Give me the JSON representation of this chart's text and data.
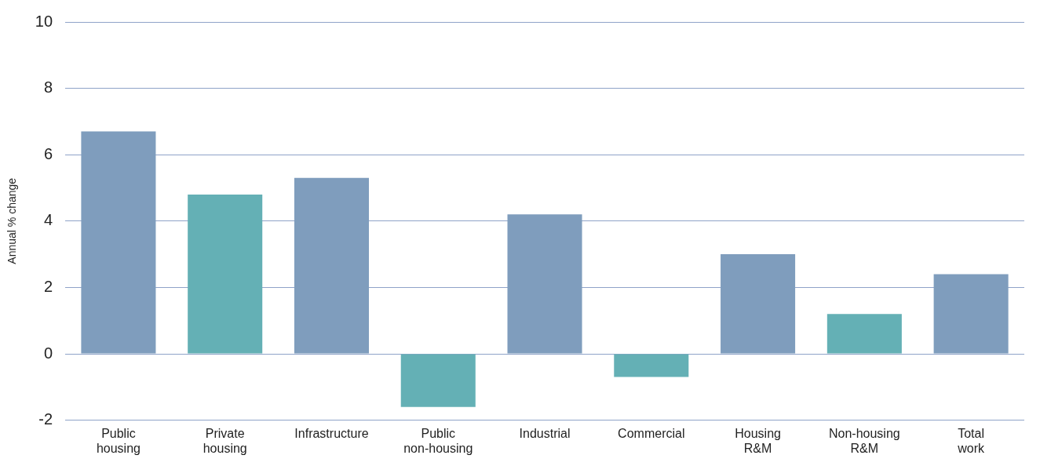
{
  "chart_data": {
    "type": "bar",
    "ylabel": "Annual % change",
    "categories": [
      "Public housing",
      "Private housing",
      "Infrastructure",
      "Public non-housing",
      "Industrial",
      "Commercial",
      "Housing R&M",
      "Non-housing R&M",
      "Total work"
    ],
    "values": [
      6.7,
      4.8,
      5.3,
      -1.6,
      4.2,
      -0.7,
      3.0,
      1.2,
      2.4
    ],
    "colors": [
      "#7f9dbd",
      "#64b0b5",
      "#7f9dbd",
      "#64b0b5",
      "#7f9dbd",
      "#64b0b5",
      "#7f9dbd",
      "#64b0b5",
      "#7f9dbd"
    ],
    "ylim": [
      -2,
      10
    ],
    "yticks": [
      -2,
      0,
      2,
      4,
      6,
      8,
      10
    ],
    "grid": "y",
    "legend": false
  }
}
